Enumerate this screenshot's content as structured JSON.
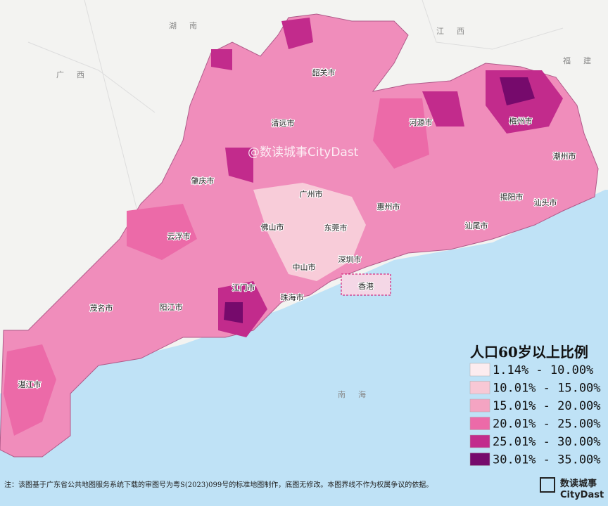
{
  "map": {
    "cities": [
      "韶关市",
      "清远市",
      "河源市",
      "梅州市",
      "潮州市",
      "肇庆市",
      "广州市",
      "惠州市",
      "揭阳市",
      "汕头市",
      "云浮市",
      "佛山市",
      "东莞市",
      "汕尾市",
      "中山市",
      "深圳市",
      "江门市",
      "珠海市",
      "茂名市",
      "阳江市",
      "湛江市",
      "香港"
    ],
    "regions": [
      "湖南",
      "江西",
      "福建",
      "广西",
      "南海"
    ],
    "watermark": "@数读城事CityDast",
    "legend": {
      "title": "人口60岁以上比例",
      "items": [
        {
          "label": "1.14% - 10.00%",
          "color": "#fcecef"
        },
        {
          "label": "10.01% - 15.00%",
          "color": "#f8c8d5"
        },
        {
          "label": "15.01% - 20.00%",
          "color": "#f4a4c2"
        },
        {
          "label": "20.01% - 25.00%",
          "color": "#ec6aa8"
        },
        {
          "label": "25.01% - 30.00%",
          "color": "#c22b8c"
        },
        {
          "label": "30.01% - 35.00%",
          "color": "#760a6c"
        }
      ]
    },
    "footnote": "注：该图基于广东省公共地图服务系统下载的审图号为粤S(2023)099号的标准地图制作，底图无修改。本图界线不作为权属争议的依据。",
    "logo": [
      "数读城事",
      "CityDast"
    ]
  }
}
